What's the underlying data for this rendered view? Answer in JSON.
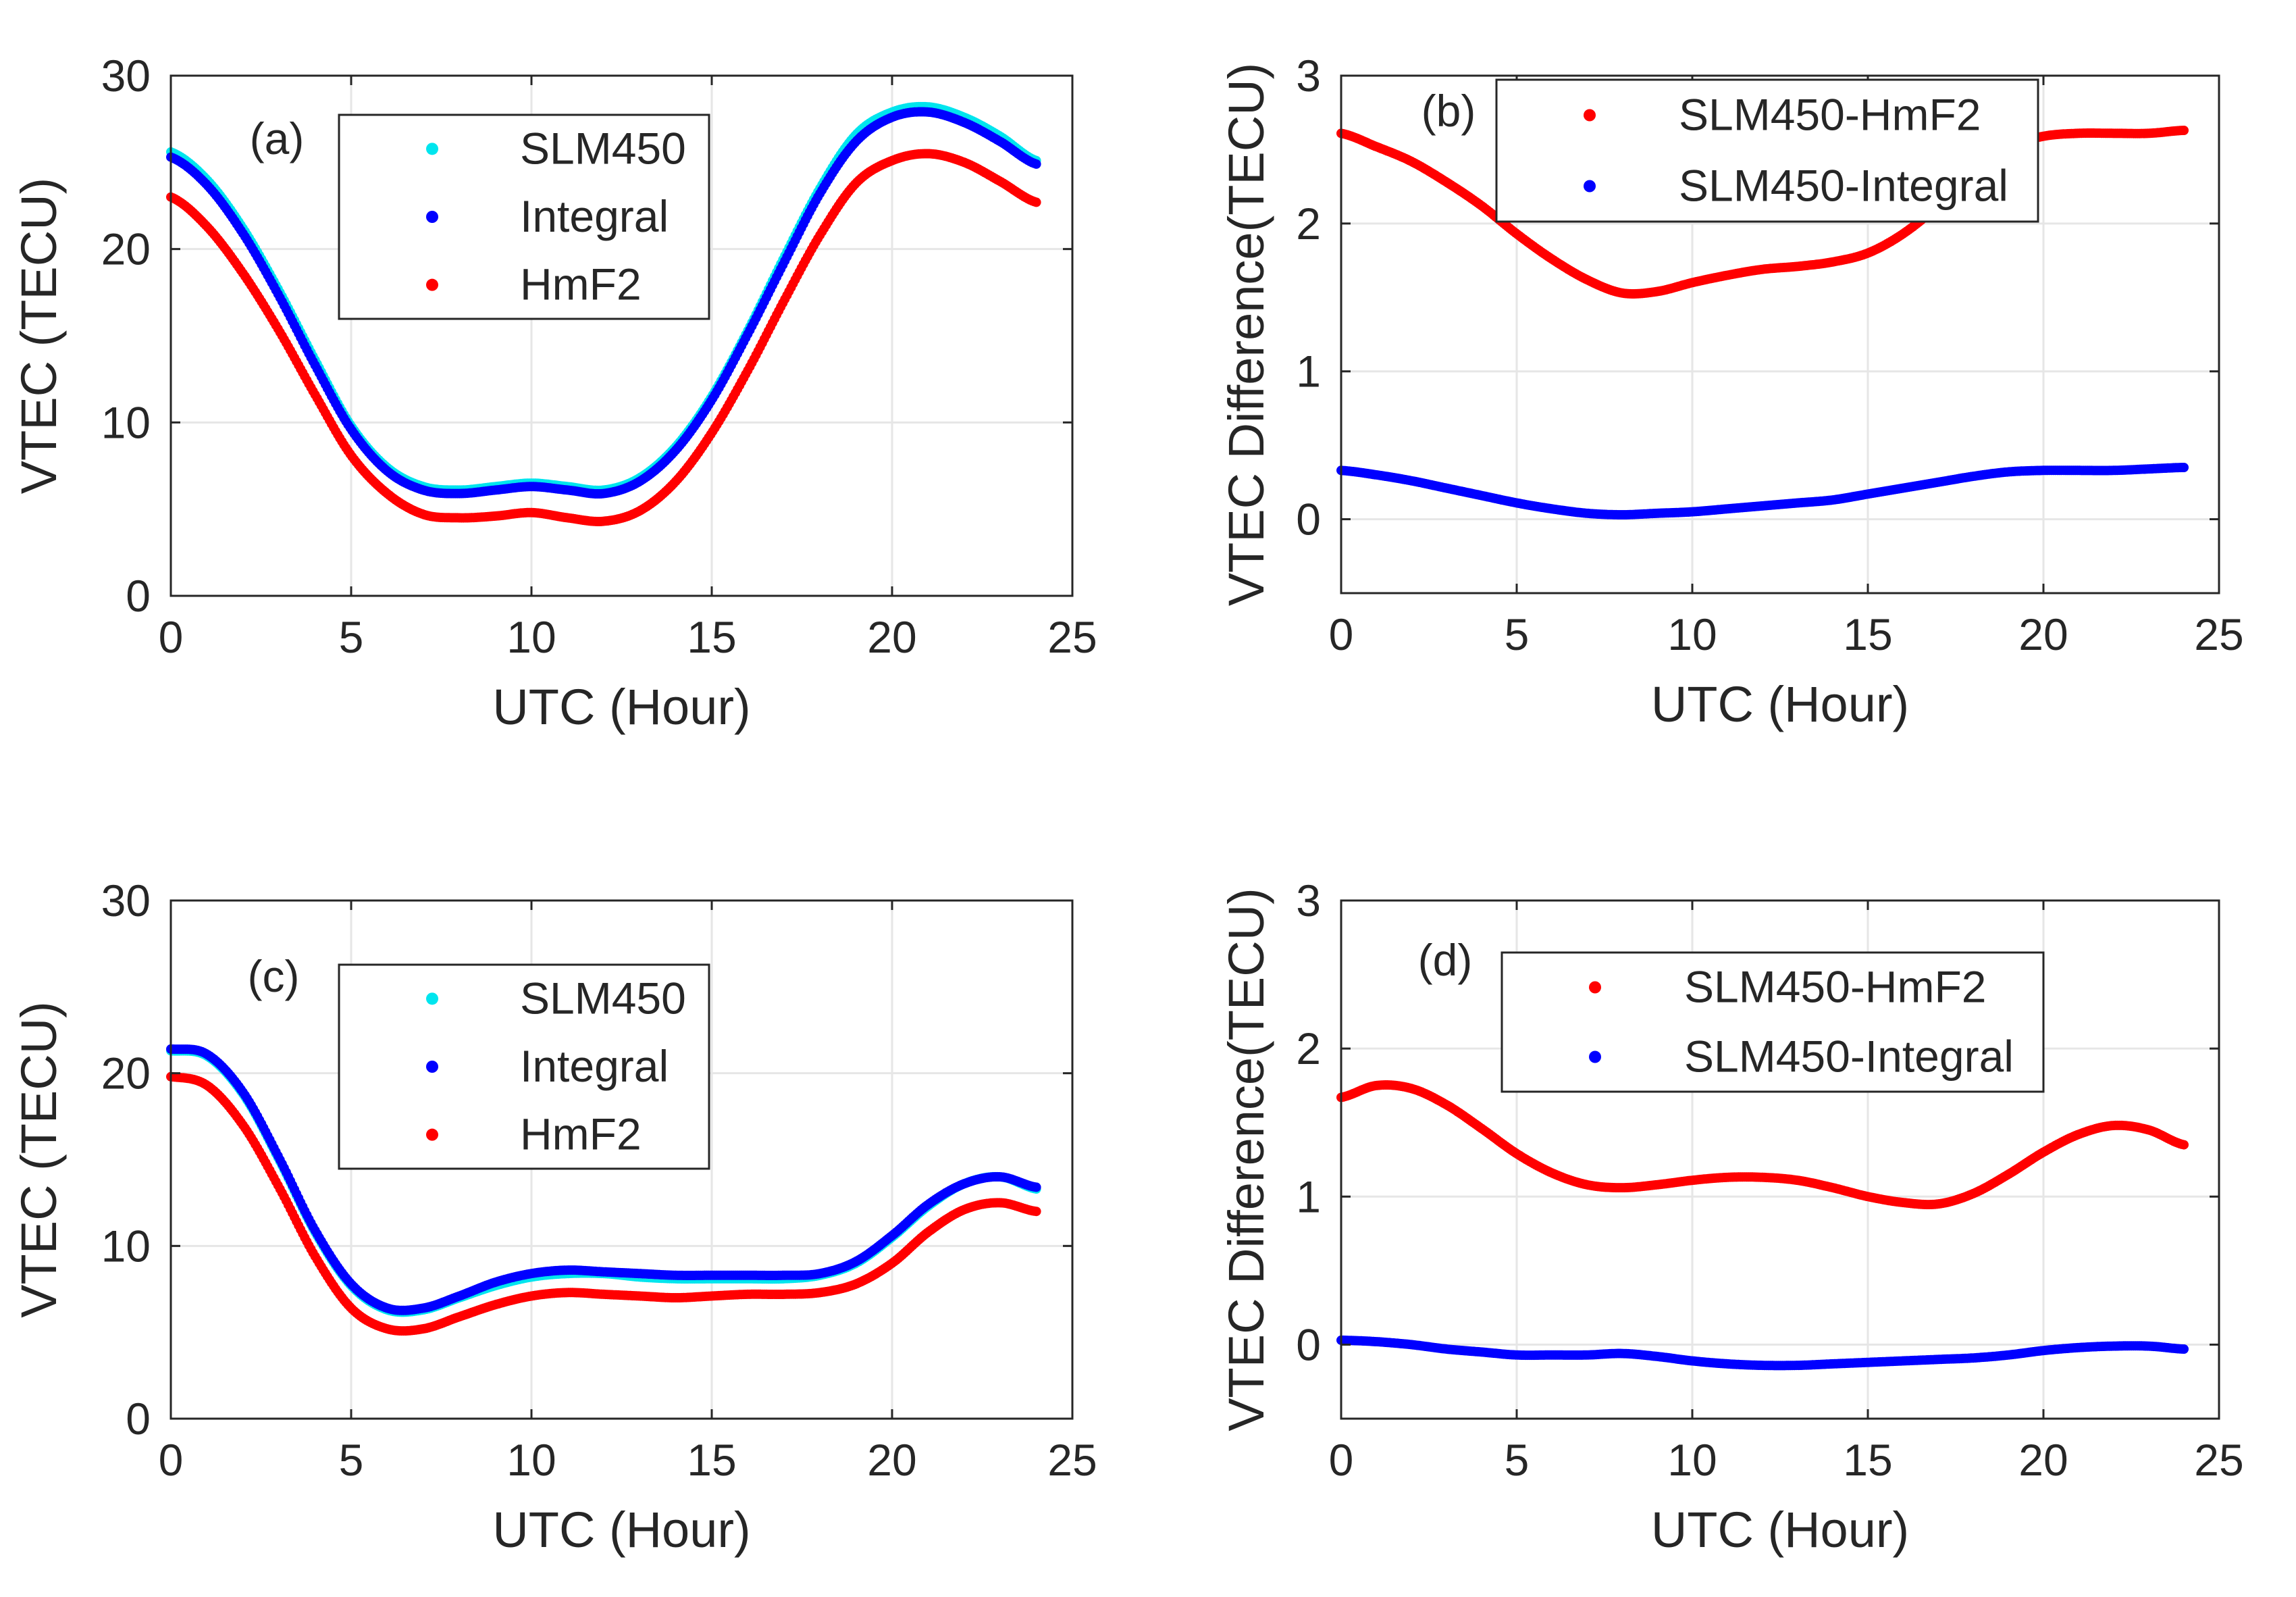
{
  "figure": {
    "panels": [
      {
        "id": "a",
        "label": "(a)",
        "xlabel": "UTC (Hour)",
        "ylabel": "VTEC (TECU)",
        "legend": [
          "SLM450",
          "Integral",
          "HmF2"
        ]
      },
      {
        "id": "b",
        "label": "(b)",
        "xlabel": "UTC (Hour)",
        "ylabel": "VTEC Difference(TECU)",
        "legend": [
          "SLM450-HmF2",
          "SLM450-Integral"
        ]
      },
      {
        "id": "c",
        "label": "(c)",
        "xlabel": "UTC (Hour)",
        "ylabel": "VTEC (TECU)",
        "legend": [
          "SLM450",
          "Integral",
          "HmF2"
        ]
      },
      {
        "id": "d",
        "label": "(d)",
        "xlabel": "UTC (Hour)",
        "ylabel": "VTEC Difference(TECU)",
        "legend": [
          "SLM450-HmF2",
          "SLM450-Integral"
        ]
      }
    ]
  },
  "colors": {
    "cyan": "#00e5ee",
    "blue": "#0000ff",
    "red": "#ff0000",
    "grid": "#e6e6e6",
    "axis": "#262626"
  },
  "chart_data": [
    {
      "panel": "a",
      "type": "scatter",
      "title": "(a)",
      "xlabel": "UTC (Hour)",
      "ylabel": "VTEC (TECU)",
      "xlim": [
        0,
        25
      ],
      "ylim": [
        0,
        30
      ],
      "xticks": [
        0,
        5,
        10,
        15,
        20,
        25
      ],
      "yticks": [
        0,
        10,
        20,
        30
      ],
      "grid": true,
      "legend_position": "top-center",
      "series": [
        {
          "name": "SLM450",
          "color": "cyan",
          "x": [
            0,
            1,
            2,
            3,
            4,
            5,
            6,
            7,
            8,
            9,
            10,
            11,
            12,
            13,
            14,
            15,
            16,
            17,
            18,
            19,
            20,
            21,
            22,
            23,
            24
          ],
          "y": [
            25.6,
            24.0,
            21.2,
            17.6,
            13.6,
            9.8,
            7.4,
            6.3,
            6.1,
            6.3,
            6.5,
            6.3,
            6.1,
            6.8,
            8.6,
            11.5,
            15.3,
            19.5,
            23.5,
            26.6,
            27.9,
            28.2,
            27.6,
            26.5,
            25.1
          ]
        },
        {
          "name": "Integral",
          "color": "blue",
          "x": [
            0,
            1,
            2,
            3,
            4,
            5,
            6,
            7,
            8,
            9,
            10,
            11,
            12,
            13,
            14,
            15,
            16,
            17,
            18,
            19,
            20,
            21,
            22,
            23,
            24
          ],
          "y": [
            25.3,
            23.7,
            20.9,
            17.3,
            13.3,
            9.6,
            7.2,
            6.1,
            5.9,
            6.1,
            6.3,
            6.1,
            5.9,
            6.6,
            8.4,
            11.3,
            15.1,
            19.2,
            23.2,
            26.2,
            27.6,
            27.9,
            27.3,
            26.2,
            24.9
          ]
        },
        {
          "name": "HmF2",
          "color": "red",
          "x": [
            0,
            1,
            2,
            3,
            4,
            5,
            6,
            7,
            8,
            9,
            10,
            11,
            12,
            13,
            14,
            15,
            16,
            17,
            18,
            19,
            20,
            21,
            22,
            23,
            24
          ],
          "y": [
            23.0,
            21.3,
            18.6,
            15.3,
            11.6,
            8.1,
            5.9,
            4.7,
            4.5,
            4.6,
            4.8,
            4.5,
            4.3,
            4.9,
            6.6,
            9.4,
            13.0,
            17.0,
            20.8,
            23.8,
            25.1,
            25.5,
            25.0,
            23.9,
            22.7
          ]
        }
      ]
    },
    {
      "panel": "b",
      "type": "scatter",
      "title": "(b)",
      "xlabel": "UTC (Hour)",
      "ylabel": "VTEC Difference(TECU)",
      "xlim": [
        0,
        25
      ],
      "ylim": [
        -0.5,
        3
      ],
      "xticks": [
        0,
        5,
        10,
        15,
        20,
        25
      ],
      "yticks": [
        0,
        1,
        2,
        3
      ],
      "grid": true,
      "legend_position": "top-center",
      "series": [
        {
          "name": "SLM450-HmF2",
          "color": "red",
          "x": [
            0,
            1,
            2,
            3,
            4,
            5,
            6,
            7,
            8,
            9,
            10,
            11,
            12,
            13,
            14,
            15,
            16,
            17,
            18,
            19,
            20,
            21,
            22,
            23,
            24
          ],
          "y": [
            2.61,
            2.52,
            2.42,
            2.28,
            2.12,
            1.93,
            1.76,
            1.62,
            1.53,
            1.54,
            1.6,
            1.65,
            1.69,
            1.71,
            1.74,
            1.8,
            1.93,
            2.12,
            2.35,
            2.52,
            2.59,
            2.61,
            2.61,
            2.61,
            2.63
          ]
        },
        {
          "name": "SLM450-Integral",
          "color": "blue",
          "x": [
            0,
            1,
            2,
            3,
            4,
            5,
            6,
            7,
            8,
            9,
            10,
            11,
            12,
            13,
            14,
            15,
            16,
            17,
            18,
            19,
            20,
            21,
            22,
            23,
            24
          ],
          "y": [
            0.33,
            0.3,
            0.26,
            0.21,
            0.16,
            0.11,
            0.07,
            0.04,
            0.03,
            0.04,
            0.05,
            0.07,
            0.09,
            0.11,
            0.13,
            0.17,
            0.21,
            0.25,
            0.29,
            0.32,
            0.33,
            0.33,
            0.33,
            0.34,
            0.35
          ]
        }
      ]
    },
    {
      "panel": "c",
      "type": "scatter",
      "title": "(c)",
      "xlabel": "UTC (Hour)",
      "ylabel": "VTEC (TECU)",
      "xlim": [
        0,
        25
      ],
      "ylim": [
        0,
        30
      ],
      "xticks": [
        0,
        5,
        10,
        15,
        20,
        25
      ],
      "yticks": [
        0,
        10,
        20,
        30
      ],
      "grid": true,
      "legend_position": "top-center",
      "series": [
        {
          "name": "SLM450",
          "color": "cyan",
          "x": [
            0,
            1,
            2,
            3,
            4,
            5,
            6,
            7,
            8,
            9,
            10,
            11,
            12,
            13,
            14,
            15,
            16,
            17,
            18,
            19,
            20,
            21,
            22,
            23,
            24
          ],
          "y": [
            21.3,
            21.0,
            18.8,
            15.0,
            10.8,
            7.7,
            6.3,
            6.3,
            7.0,
            7.7,
            8.2,
            8.4,
            8.4,
            8.2,
            8.1,
            8.1,
            8.1,
            8.1,
            8.3,
            9.0,
            10.5,
            12.3,
            13.6,
            14.0,
            13.3
          ]
        },
        {
          "name": "Integral",
          "color": "blue",
          "x": [
            0,
            1,
            2,
            3,
            4,
            5,
            6,
            7,
            8,
            9,
            10,
            11,
            12,
            13,
            14,
            15,
            16,
            17,
            18,
            19,
            20,
            21,
            22,
            23,
            24
          ],
          "y": [
            21.4,
            21.1,
            18.9,
            15.1,
            10.9,
            7.8,
            6.4,
            6.4,
            7.1,
            7.9,
            8.4,
            8.6,
            8.5,
            8.4,
            8.3,
            8.3,
            8.3,
            8.3,
            8.4,
            9.1,
            10.6,
            12.4,
            13.6,
            14.0,
            13.4
          ]
        },
        {
          "name": "HmF2",
          "color": "red",
          "x": [
            0,
            1,
            2,
            3,
            4,
            5,
            6,
            7,
            8,
            9,
            10,
            11,
            12,
            13,
            14,
            15,
            16,
            17,
            18,
            19,
            20,
            21,
            22,
            23,
            24
          ],
          "y": [
            19.8,
            19.3,
            17.0,
            13.4,
            9.4,
            6.4,
            5.2,
            5.2,
            5.9,
            6.6,
            7.1,
            7.3,
            7.2,
            7.1,
            7.0,
            7.1,
            7.2,
            7.2,
            7.3,
            7.8,
            9.0,
            10.8,
            12.1,
            12.5,
            12.0
          ]
        }
      ]
    },
    {
      "panel": "d",
      "type": "scatter",
      "title": "(d)",
      "xlabel": "UTC (Hour)",
      "ylabel": "VTEC Difference(TECU)",
      "xlim": [
        0,
        25
      ],
      "ylim": [
        -0.5,
        3
      ],
      "xticks": [
        0,
        5,
        10,
        15,
        20,
        25
      ],
      "yticks": [
        0,
        1,
        2,
        3
      ],
      "grid": true,
      "legend_position": "top-center",
      "series": [
        {
          "name": "SLM450-HmF2",
          "color": "red",
          "x": [
            0,
            1,
            2,
            3,
            4,
            5,
            6,
            7,
            8,
            9,
            10,
            11,
            12,
            13,
            14,
            15,
            16,
            17,
            18,
            19,
            20,
            21,
            22,
            23,
            24
          ],
          "y": [
            1.67,
            1.75,
            1.73,
            1.62,
            1.46,
            1.29,
            1.16,
            1.08,
            1.06,
            1.08,
            1.11,
            1.13,
            1.13,
            1.11,
            1.06,
            1.0,
            0.96,
            0.95,
            1.02,
            1.15,
            1.3,
            1.42,
            1.48,
            1.45,
            1.35
          ]
        },
        {
          "name": "SLM450-Integral",
          "color": "blue",
          "x": [
            0,
            1,
            2,
            3,
            4,
            5,
            6,
            7,
            8,
            9,
            10,
            11,
            12,
            13,
            14,
            15,
            16,
            17,
            18,
            19,
            20,
            21,
            22,
            23,
            24
          ],
          "y": [
            0.03,
            0.02,
            0.0,
            -0.03,
            -0.05,
            -0.07,
            -0.07,
            -0.07,
            -0.06,
            -0.08,
            -0.11,
            -0.13,
            -0.14,
            -0.14,
            -0.13,
            -0.12,
            -0.11,
            -0.1,
            -0.09,
            -0.07,
            -0.04,
            -0.02,
            -0.01,
            -0.01,
            -0.03
          ]
        }
      ]
    }
  ]
}
